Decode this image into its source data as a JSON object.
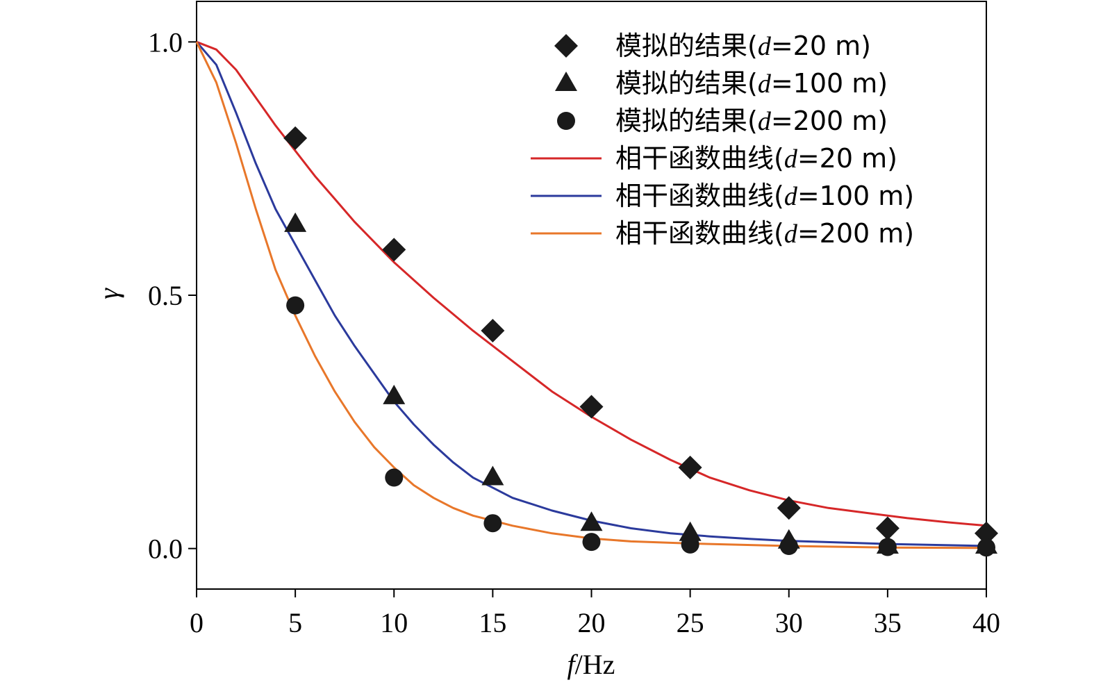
{
  "chart_data": {
    "type": "line",
    "xlabel_var": "f",
    "xlabel_unit": "/Hz",
    "ylabel": "γ",
    "xlim": [
      0,
      40
    ],
    "ylim": [
      -0.08,
      1.08
    ],
    "xticks": [
      0,
      5,
      10,
      15,
      20,
      25,
      30,
      35,
      40
    ],
    "xtick_labels": [
      "0",
      "5",
      "10",
      "15",
      "20",
      "25",
      "30",
      "35",
      "40"
    ],
    "yticks": [
      0.0,
      0.5,
      1.0
    ],
    "ytick_labels": [
      "0.0",
      "0.5",
      "1.0"
    ],
    "legend_position": "top-right",
    "scatter_series": [
      {
        "name_prefix": "模拟的结果(",
        "name_var": "d",
        "name_suffix": "=20 m)",
        "marker": "diamond",
        "color": "#1a1a1a",
        "x": [
          5,
          10,
          15,
          20,
          25,
          30,
          35,
          40
        ],
        "y": [
          0.81,
          0.59,
          0.43,
          0.28,
          0.16,
          0.08,
          0.04,
          0.03
        ]
      },
      {
        "name_prefix": "模拟的结果(",
        "name_var": "d",
        "name_suffix": "=100 m)",
        "marker": "triangle",
        "color": "#1a1a1a",
        "x": [
          5,
          10,
          15,
          20,
          25,
          30,
          35,
          40
        ],
        "y": [
          0.64,
          0.3,
          0.14,
          0.05,
          0.03,
          0.015,
          0.005,
          0.005
        ]
      },
      {
        "name_prefix": "模拟的结果(",
        "name_var": "d",
        "name_suffix": "=200 m)",
        "marker": "circle",
        "color": "#1a1a1a",
        "x": [
          5,
          10,
          15,
          20,
          25,
          30,
          35,
          40
        ],
        "y": [
          0.48,
          0.14,
          0.05,
          0.013,
          0.008,
          0.005,
          0.003,
          0.002
        ]
      }
    ],
    "line_series": [
      {
        "name_prefix": "相干函数曲线(",
        "name_var": "d",
        "name_suffix": "=20 m)",
        "color": "#d62728",
        "x": [
          0,
          1,
          2,
          3,
          4,
          5,
          6,
          7,
          8,
          9,
          10,
          12,
          14,
          16,
          18,
          20,
          22,
          24,
          26,
          28,
          30,
          32,
          34,
          36,
          38,
          40
        ],
        "y": [
          1.0,
          0.985,
          0.945,
          0.89,
          0.835,
          0.785,
          0.735,
          0.69,
          0.645,
          0.605,
          0.565,
          0.495,
          0.43,
          0.37,
          0.31,
          0.26,
          0.215,
          0.175,
          0.14,
          0.115,
          0.095,
          0.08,
          0.07,
          0.06,
          0.052,
          0.045
        ]
      },
      {
        "name_prefix": "相干函数曲线(",
        "name_var": "d",
        "name_suffix": "=100 m)",
        "color": "#2b3a9c",
        "x": [
          0,
          1,
          2,
          3,
          4,
          5,
          6,
          7,
          8,
          9,
          10,
          11,
          12,
          13,
          14,
          15,
          16,
          18,
          20,
          22,
          24,
          26,
          28,
          30,
          35,
          40
        ],
        "y": [
          1.0,
          0.955,
          0.86,
          0.76,
          0.67,
          0.6,
          0.53,
          0.46,
          0.4,
          0.345,
          0.29,
          0.245,
          0.205,
          0.17,
          0.14,
          0.12,
          0.1,
          0.075,
          0.055,
          0.04,
          0.03,
          0.024,
          0.019,
          0.015,
          0.009,
          0.005
        ]
      },
      {
        "name_prefix": "相干函数曲线(",
        "name_var": "d",
        "name_suffix": "=200 m)",
        "color": "#e8772a",
        "x": [
          0,
          1,
          2,
          3,
          4,
          5,
          6,
          7,
          8,
          9,
          10,
          11,
          12,
          13,
          14,
          15,
          16,
          18,
          20,
          22,
          25,
          30,
          35,
          40
        ],
        "y": [
          1.0,
          0.92,
          0.8,
          0.67,
          0.55,
          0.46,
          0.38,
          0.31,
          0.25,
          0.2,
          0.16,
          0.125,
          0.1,
          0.08,
          0.065,
          0.055,
          0.045,
          0.03,
          0.02,
          0.014,
          0.01,
          0.005,
          0.002,
          0.001
        ]
      }
    ]
  }
}
